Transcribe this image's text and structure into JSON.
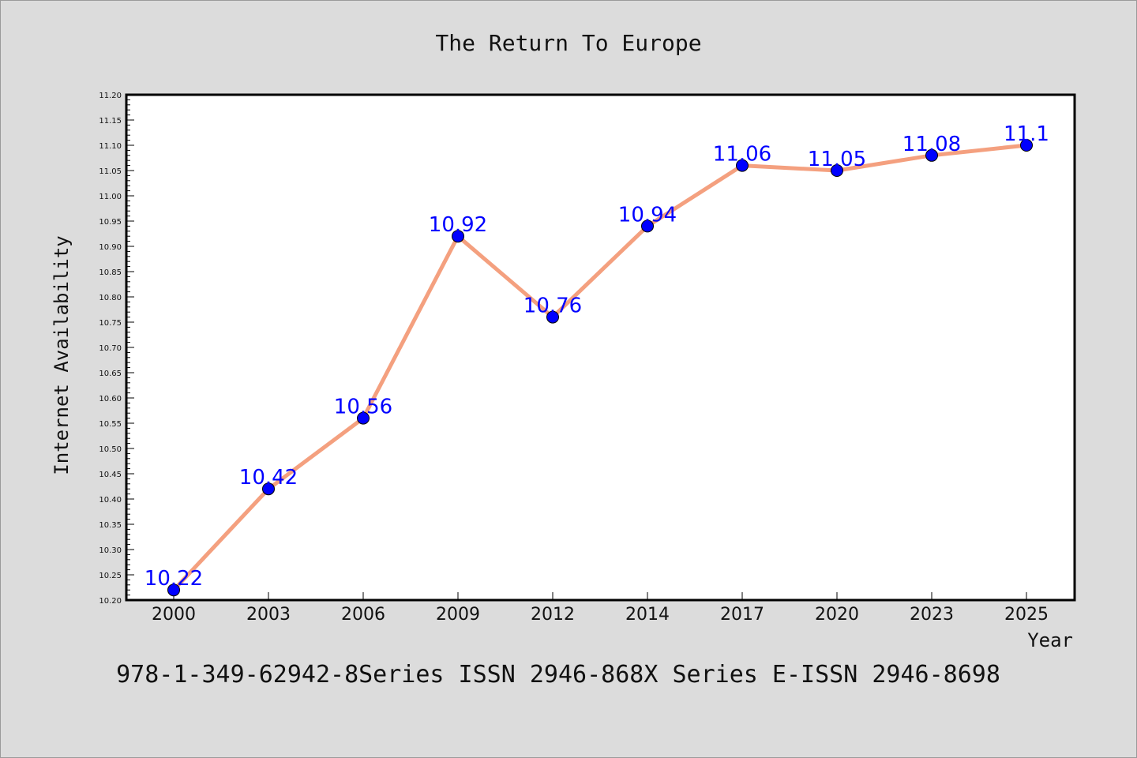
{
  "chart_data": {
    "type": "line",
    "title": "The Return To Europe",
    "xlabel": "Year",
    "ylabel": "Internet Availability",
    "categories": [
      "2000",
      "2003",
      "2006",
      "2009",
      "2012",
      "2014",
      "2017",
      "2020",
      "2023",
      "2025"
    ],
    "series": [
      {
        "values": [
          10.22,
          10.42,
          10.56,
          10.92,
          10.76,
          10.94,
          11.06,
          11.05,
          11.08,
          11.1
        ]
      }
    ],
    "data_labels": [
      "10.22",
      "10.42",
      "10.56",
      "10.92",
      "10.76",
      "10.94",
      "11.06",
      "11.05",
      "11.08",
      "11.1"
    ],
    "ylim": [
      10.2,
      11.2
    ],
    "yticks": [
      "10.20",
      "10.25",
      "10.30",
      "10.35",
      "10.40",
      "10.45",
      "10.50",
      "10.55",
      "10.60",
      "10.65",
      "10.70",
      "10.75",
      "10.80",
      "10.85",
      "10.90",
      "10.95",
      "11.00",
      "11.05",
      "11.10",
      "11.15",
      "11.20"
    ],
    "grid": false,
    "legend": "none",
    "colors": {
      "line": "#f4a07f",
      "marker": "#0000ff",
      "data_label": "#0000ff",
      "background": "#dcdcdc",
      "plot_background": "#ffffff"
    }
  },
  "footer": {
    "text": "978-1-349-62942-8Series ISSN 2946-868X Series E-ISSN 2946-8698"
  }
}
